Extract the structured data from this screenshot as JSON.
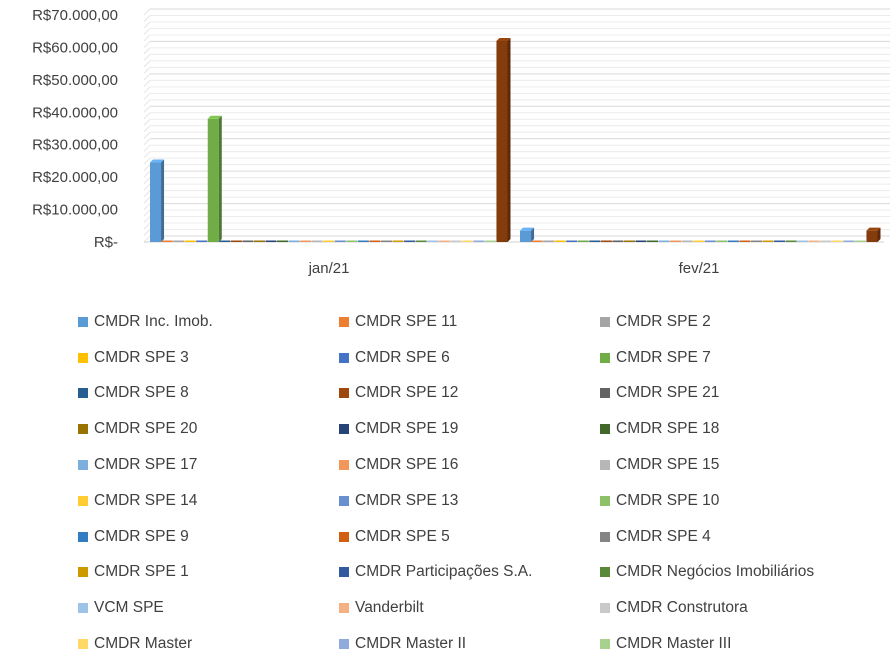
{
  "chart_data": {
    "type": "bar",
    "categories": [
      "jan/21",
      "fev/21"
    ],
    "ylim": [
      0,
      70000
    ],
    "yticks": [
      {
        "value": 0,
        "label": "R$-"
      },
      {
        "value": 10000,
        "label": "R$10.000,00"
      },
      {
        "value": 20000,
        "label": "R$20.000,00"
      },
      {
        "value": 30000,
        "label": "R$30.000,00"
      },
      {
        "value": 40000,
        "label": "R$40.000,00"
      },
      {
        "value": 50000,
        "label": "R$50.000,00"
      },
      {
        "value": 60000,
        "label": "R$60.000,00"
      },
      {
        "value": 70000,
        "label": "R$70.000,00"
      }
    ],
    "grid": true,
    "legend_position": "bottom",
    "series": [
      {
        "name": "CMDR Inc. Imob.",
        "color": "#5B9BD5",
        "values": [
          24500,
          3500
        ]
      },
      {
        "name": "CMDR SPE 11",
        "color": "#ED7D31",
        "values": [
          0,
          0
        ]
      },
      {
        "name": "CMDR SPE 2",
        "color": "#A5A5A5",
        "values": [
          0,
          0
        ]
      },
      {
        "name": "CMDR SPE 3",
        "color": "#FFC000",
        "values": [
          0,
          0
        ]
      },
      {
        "name": "CMDR SPE 6",
        "color": "#4472C4",
        "values": [
          0,
          0
        ]
      },
      {
        "name": "CMDR SPE 7",
        "color": "#70AD47",
        "values": [
          38000,
          0
        ]
      },
      {
        "name": "CMDR SPE 8",
        "color": "#255E91",
        "values": [
          0,
          0
        ]
      },
      {
        "name": "CMDR SPE 12",
        "color": "#9E480E",
        "values": [
          0,
          0
        ]
      },
      {
        "name": "CMDR SPE 21",
        "color": "#636363",
        "values": [
          0,
          0
        ]
      },
      {
        "name": "CMDR SPE 20",
        "color": "#997300",
        "values": [
          0,
          0
        ]
      },
      {
        "name": "CMDR SPE 19",
        "color": "#264478",
        "values": [
          0,
          0
        ]
      },
      {
        "name": "CMDR SPE 18",
        "color": "#43682B",
        "values": [
          0,
          0
        ]
      },
      {
        "name": "CMDR SPE 17",
        "color": "#7CAFDD",
        "values": [
          0,
          0
        ]
      },
      {
        "name": "CMDR SPE 16",
        "color": "#F1975A",
        "values": [
          0,
          0
        ]
      },
      {
        "name": "CMDR SPE 15",
        "color": "#B7B7B7",
        "values": [
          0,
          0
        ]
      },
      {
        "name": "CMDR SPE 14",
        "color": "#FFCD33",
        "values": [
          0,
          0
        ]
      },
      {
        "name": "CMDR SPE 13",
        "color": "#698ED0",
        "values": [
          0,
          0
        ]
      },
      {
        "name": "CMDR SPE 10",
        "color": "#8CC168",
        "values": [
          0,
          0
        ]
      },
      {
        "name": "CMDR SPE 9",
        "color": "#327DC2",
        "values": [
          0,
          0
        ]
      },
      {
        "name": "CMDR SPE 5",
        "color": "#D26012",
        "values": [
          0,
          0
        ]
      },
      {
        "name": "CMDR SPE 4",
        "color": "#848484",
        "values": [
          0,
          0
        ]
      },
      {
        "name": "CMDR SPE 1",
        "color": "#CC9A00",
        "values": [
          0,
          0
        ]
      },
      {
        "name": "CMDR Participações S.A.",
        "color": "#335AA1",
        "values": [
          0,
          0
        ]
      },
      {
        "name": "CMDR Negócios Imobiliários",
        "color": "#5A8A39",
        "values": [
          0,
          0
        ]
      },
      {
        "name": "VCM SPE",
        "color": "#9DC3E6",
        "values": [
          0,
          0
        ]
      },
      {
        "name": "Vanderbilt",
        "color": "#F4B183",
        "values": [
          0,
          0
        ]
      },
      {
        "name": "CMDR Construtora",
        "color": "#C9C9C9",
        "values": [
          0,
          0
        ]
      },
      {
        "name": "CMDR Master",
        "color": "#FFD966",
        "values": [
          0,
          0
        ]
      },
      {
        "name": "CMDR Master II",
        "color": "#8FAADC",
        "values": [
          0,
          0
        ]
      },
      {
        "name": "CMDR Master III",
        "color": "#A9D18E",
        "values": [
          0,
          0
        ]
      },
      {
        "name": "",
        "color": "#843C0C",
        "values": [
          62000,
          3500
        ]
      }
    ]
  }
}
